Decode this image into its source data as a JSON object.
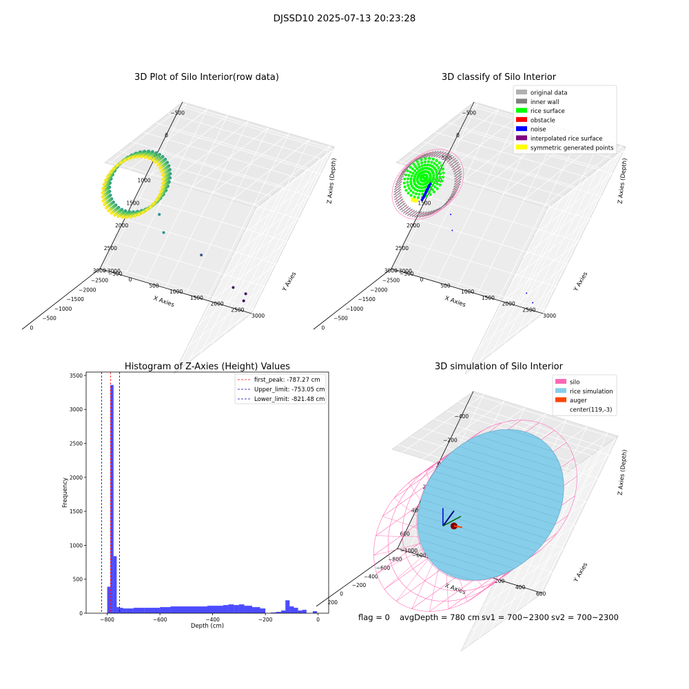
{
  "suptitle": "DJSSD10 2025-07-13 20:23:28",
  "footer": {
    "flag": "flag = 0",
    "avg_depth": "avgDepth = 780 cm",
    "sv1": "sv1 = 700~2300",
    "sv2": "sv2 = 700~2300"
  },
  "chart_data": [
    {
      "type": "scatter3d",
      "title": "3D Plot of Silo Interior(row data)",
      "xlabel": "X Axies",
      "ylabel": "Y Axies",
      "zlabel": "Z Axies (Depth)",
      "x_ticks": [
        -500,
        0,
        500,
        1000,
        1500,
        2000,
        2500,
        3000
      ],
      "y_ticks": [
        -500,
        0,
        500,
        1000,
        1500,
        2000,
        2500,
        3000
      ],
      "z_ticks": [
        0,
        -500,
        -1000,
        -1500,
        -2000,
        -2500,
        -3000
      ],
      "x_ticks_text": [
        "−500",
        "0",
        "500",
        "1000",
        "1500",
        "2000",
        "2500",
        "3000"
      ],
      "y_ticks_text": [
        "−500",
        "0",
        "500",
        "1000",
        "1500",
        "2000",
        "2500",
        "3000"
      ],
      "z_ticks_text": [
        "0",
        "−500",
        "−1000",
        "−1500",
        "−2000",
        "−2500",
        "−3000"
      ],
      "xlim": [
        -600,
        3100
      ],
      "ylim": [
        -600,
        3100
      ],
      "zlim": [
        -3100,
        100
      ],
      "colormap": "viridis",
      "cluster": {
        "center_x": 120,
        "center_y": 0,
        "radius": 650,
        "z_top": -700,
        "z_bottom": -1000
      },
      "outliers": [
        {
          "x": 900,
          "y": 600,
          "z": -1500
        },
        {
          "x": 1200,
          "y": 900,
          "z": -1450
        },
        {
          "x": 1800,
          "y": 1700,
          "z": -2200
        },
        {
          "x": 2600,
          "y": 2500,
          "z": -2900
        },
        {
          "x": 2700,
          "y": 2800,
          "z": -3000
        },
        {
          "x": 2900,
          "y": 2800,
          "z": -3100
        }
      ]
    },
    {
      "type": "scatter3d",
      "title": "3D classify of Silo Interior",
      "xlabel": "X Axies",
      "ylabel": "Y Axies",
      "zlabel": "Z Axies (Depth)",
      "x_ticks": [
        -500,
        0,
        500,
        1000,
        1500,
        2000,
        2500,
        3000
      ],
      "y_ticks": [
        -500,
        0,
        500,
        1000,
        1500,
        2000,
        2500,
        3000
      ],
      "z_ticks": [
        0,
        -500,
        -1000,
        -1500,
        -2000,
        -2500,
        -3000
      ],
      "x_ticks_text": [
        "−500",
        "0",
        "500",
        "1000",
        "1500",
        "2000",
        "2500",
        "3000"
      ],
      "y_ticks_text": [
        "−500",
        "0",
        "500",
        "1000",
        "1500",
        "2000",
        "2500",
        "3000"
      ],
      "z_ticks_text": [
        "0",
        "−500",
        "−1000",
        "−1500",
        "−2000",
        "−2500",
        "−3000"
      ],
      "xlim": [
        -600,
        3100
      ],
      "ylim": [
        -600,
        3100
      ],
      "zlim": [
        -3100,
        100
      ],
      "legend": {
        "placement": "top-right",
        "entries": [
          {
            "label": "original data",
            "color": "#b0b0b0"
          },
          {
            "label": "inner wall",
            "color": "#808080"
          },
          {
            "label": "rice surface",
            "color": "#00ff00"
          },
          {
            "label": "obstacle",
            "color": "#ff0000"
          },
          {
            "label": "noise",
            "color": "#0000ff"
          },
          {
            "label": "interpolated rice surface",
            "color": "#800080"
          },
          {
            "label": "symmetric generated points",
            "color": "#ffff00"
          }
        ]
      },
      "cluster": {
        "center_x": 120,
        "center_y": 0,
        "radius": 650,
        "z_top": -700,
        "z_bottom": -1000
      },
      "noise_points": [
        {
          "x": 900,
          "y": 600,
          "z": -1500
        },
        {
          "x": 1200,
          "y": 800,
          "z": -1500
        },
        {
          "x": 2700,
          "y": 2600,
          "z": -2900
        },
        {
          "x": 2900,
          "y": 2800,
          "z": -3000
        }
      ]
    },
    {
      "type": "bar",
      "title": "Histogram of Z-Axies (Height) Values",
      "xlabel": "Depth (cm)",
      "ylabel": "Frequency",
      "xlim": [
        -880,
        40
      ],
      "ylim": [
        0,
        3550
      ],
      "x_ticks": [
        -800,
        -600,
        -400,
        -200,
        0
      ],
      "x_ticks_text": [
        "−800",
        "−600",
        "−400",
        "−200",
        "0"
      ],
      "y_ticks": [
        0,
        500,
        1000,
        1500,
        2000,
        2500,
        3000,
        3500
      ],
      "y_ticks_text": [
        "0",
        "500",
        "1000",
        "1500",
        "2000",
        "2500",
        "3000",
        "3500"
      ],
      "bar_color": "#0000ff",
      "bars": [
        {
          "x0": -800,
          "x1": -788,
          "value": 390
        },
        {
          "x0": -788,
          "x1": -776,
          "value": 3360
        },
        {
          "x0": -776,
          "x1": -764,
          "value": 840
        },
        {
          "x0": -764,
          "x1": -752,
          "value": 90
        },
        {
          "x0": -752,
          "x1": -740,
          "value": 80
        },
        {
          "x0": -740,
          "x1": -728,
          "value": 70
        },
        {
          "x0": -728,
          "x1": -700,
          "value": 70
        },
        {
          "x0": -700,
          "x1": -660,
          "value": 80
        },
        {
          "x0": -660,
          "x1": -600,
          "value": 80
        },
        {
          "x0": -600,
          "x1": -560,
          "value": 90
        },
        {
          "x0": -560,
          "x1": -480,
          "value": 100
        },
        {
          "x0": -480,
          "x1": -420,
          "value": 100
        },
        {
          "x0": -420,
          "x1": -360,
          "value": 110
        },
        {
          "x0": -360,
          "x1": -340,
          "value": 120
        },
        {
          "x0": -340,
          "x1": -320,
          "value": 130
        },
        {
          "x0": -320,
          "x1": -300,
          "value": 120
        },
        {
          "x0": -300,
          "x1": -280,
          "value": 130
        },
        {
          "x0": -280,
          "x1": -250,
          "value": 110
        },
        {
          "x0": -250,
          "x1": -220,
          "value": 90
        },
        {
          "x0": -220,
          "x1": -200,
          "value": 70
        },
        {
          "x0": -180,
          "x1": -160,
          "value": 10
        },
        {
          "x0": -160,
          "x1": -140,
          "value": 20
        },
        {
          "x0": -140,
          "x1": -124,
          "value": 40
        },
        {
          "x0": -124,
          "x1": -108,
          "value": 190
        },
        {
          "x0": -108,
          "x1": -92,
          "value": 100
        },
        {
          "x0": -92,
          "x1": -76,
          "value": 80
        },
        {
          "x0": -76,
          "x1": -60,
          "value": 40
        },
        {
          "x0": -60,
          "x1": -44,
          "value": 50
        },
        {
          "x0": -20,
          "x1": -4,
          "value": 30
        }
      ],
      "vlines": [
        {
          "label": "first_peak: -787.27 cm",
          "x": -787.27,
          "color": "#ff0000"
        },
        {
          "label": "Upper_limit: -753.05 cm",
          "x": -753.05,
          "color": "#0000aa"
        },
        {
          "label": "Lower_limit: -821.48 cm",
          "x": -821.48,
          "color": "#0000aa"
        }
      ],
      "legend_placement": "top-right"
    },
    {
      "type": "surface3d",
      "title": "3D simulation of Silo Interior",
      "xlabel": "X Axies",
      "ylabel": "Y Axies",
      "zlabel": "Z Axies (Depth)",
      "x_ticks": [
        -400,
        -200,
        0,
        200,
        400,
        600
      ],
      "y_ticks": [
        -600,
        -400,
        -200,
        0,
        200,
        400,
        600
      ],
      "z_ticks": [
        200,
        0,
        -200,
        -400,
        -600,
        -800,
        -1000
      ],
      "x_ticks_text": [
        "−400",
        "−200",
        "0",
        "200",
        "400",
        "600"
      ],
      "y_ticks_text": [
        "−600",
        "−400",
        "−200",
        "0",
        "200",
        "400",
        "600"
      ],
      "z_ticks_text": [
        "200",
        "0",
        "−200",
        "−400",
        "−600",
        "−800",
        "−1000"
      ],
      "xlim": [
        -560,
        780
      ],
      "ylim": [
        -700,
        700
      ],
      "zlim": [
        -1050,
        300
      ],
      "legend": {
        "placement": "top-right",
        "entries": [
          {
            "label": "silo",
            "color": "#ff69b4"
          },
          {
            "label": "rice simulation",
            "color": "#87ceeb"
          },
          {
            "label": "auger",
            "color": "#ff4500"
          },
          {
            "label": "center(119,-3)",
            "color": "#ffffff"
          }
        ]
      },
      "silo": {
        "center_x": 119,
        "center_y": -3,
        "radius": 620,
        "z_top": -50,
        "z_bottom": -1000
      },
      "rice_surface_z": -780,
      "auger": {
        "x": 50,
        "y": 0,
        "z": -100
      }
    }
  ]
}
